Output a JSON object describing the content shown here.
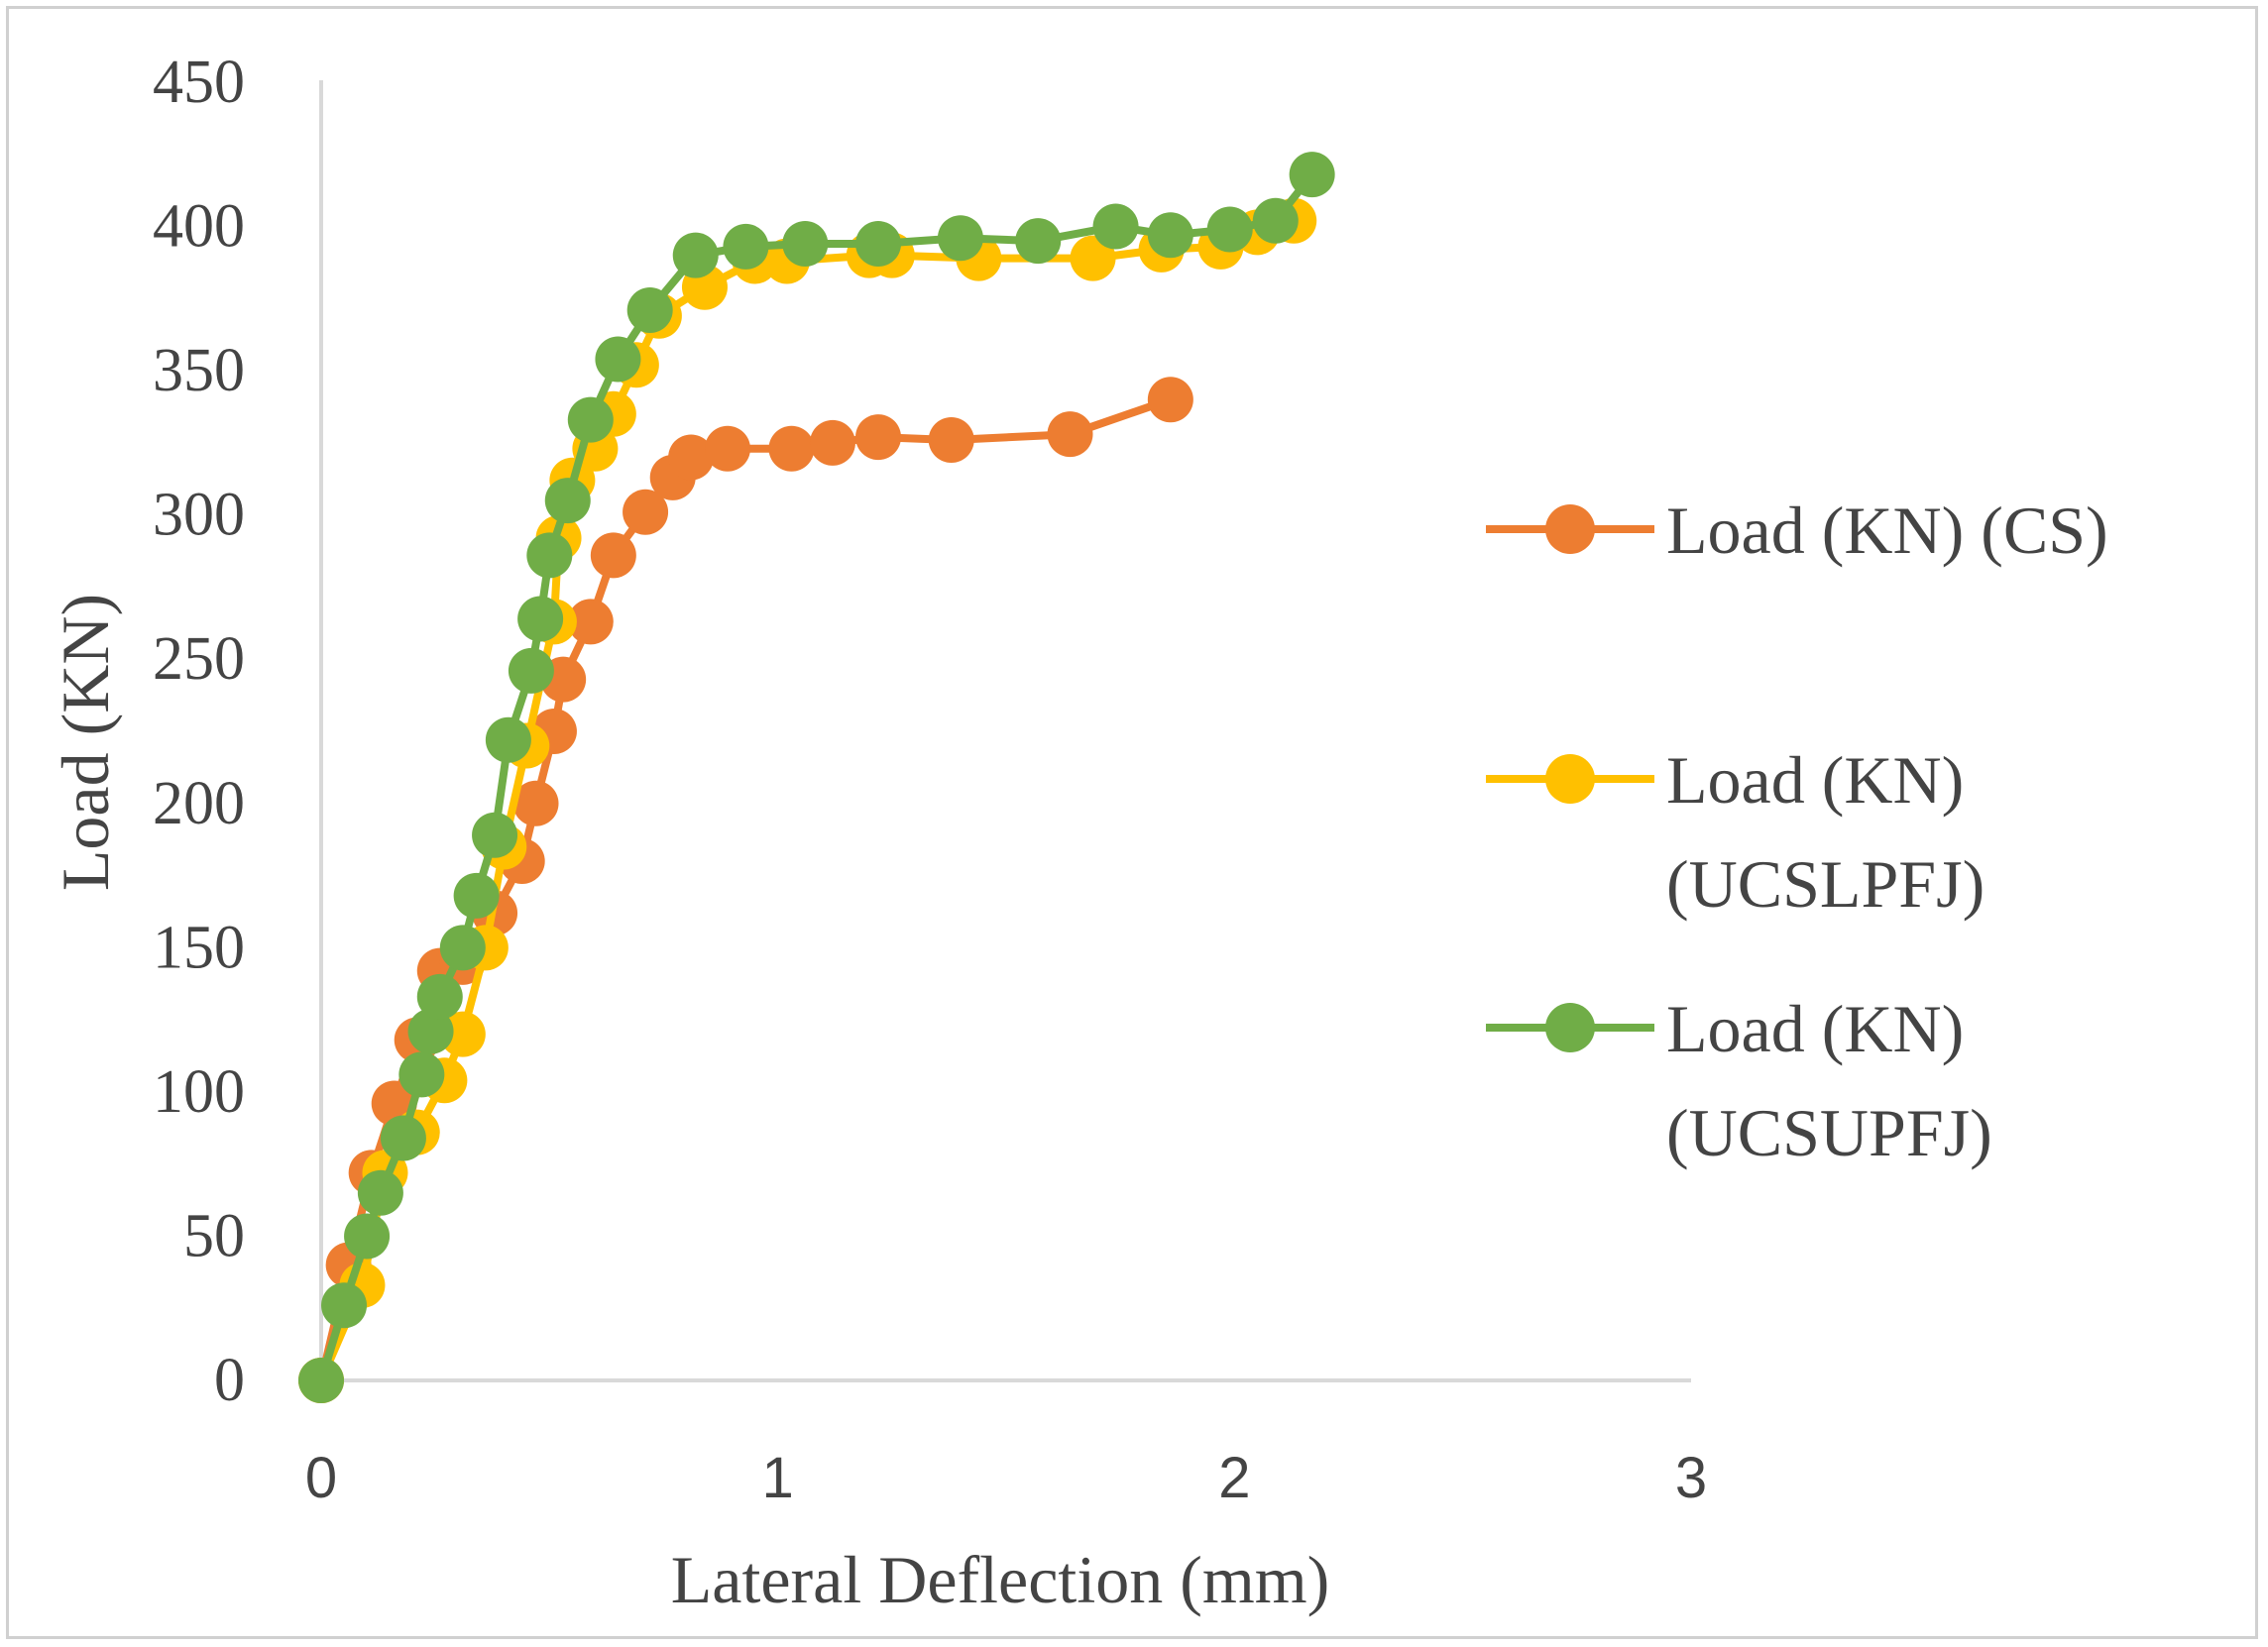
{
  "chart_data": {
    "type": "line",
    "title": "",
    "xlabel": "Lateral Deflection (mm)",
    "ylabel": "Load (KN)",
    "xlim": [
      0,
      3
    ],
    "ylim": [
      0,
      450
    ],
    "xticks": [
      0,
      1,
      2,
      3
    ],
    "yticks": [
      0,
      50,
      100,
      150,
      200,
      250,
      300,
      350,
      400,
      450
    ],
    "grid": false,
    "legend_position": "right",
    "series": [
      {
        "name": "Load (KN) (CS)",
        "legend_lines": [
          "Load (KN) (CS)"
        ],
        "color": "#ED7D31",
        "x": [
          0,
          0.06,
          0.11,
          0.16,
          0.21,
          0.26,
          0.31,
          0.38,
          0.44,
          0.47,
          0.51,
          0.53,
          0.59,
          0.64,
          0.71,
          0.77,
          0.81,
          0.89,
          1.03,
          1.12,
          1.22,
          1.38,
          1.64,
          1.86
        ],
        "y": [
          0,
          40,
          72,
          96,
          118,
          142,
          145,
          162,
          180,
          200,
          225,
          243,
          263,
          286,
          301,
          313,
          320,
          323,
          323,
          325,
          327,
          326,
          328,
          340
        ]
      },
      {
        "name": "Load (KN) (UCSLPFJ)",
        "legend_lines": [
          "Load (KN)",
          "(UCSLPFJ)"
        ],
        "color": "#FFC000",
        "x": [
          0,
          0.09,
          0.14,
          0.21,
          0.27,
          0.31,
          0.36,
          0.4,
          0.45,
          0.51,
          0.52,
          0.55,
          0.6,
          0.64,
          0.69,
          0.74,
          0.84,
          0.95,
          1.02,
          1.2,
          1.25,
          1.44,
          1.69,
          1.84,
          1.97,
          2.05,
          2.13
        ],
        "y": [
          0,
          33,
          72,
          86,
          104,
          120,
          150,
          185,
          220,
          263,
          292,
          312,
          323,
          335,
          352,
          369,
          379,
          388,
          388,
          390,
          390,
          389,
          389,
          392,
          393,
          398,
          402
        ]
      },
      {
        "name": "Load (KN) (UCSUPFJ)",
        "legend_lines": [
          "Load (KN)",
          "(UCSUPFJ)"
        ],
        "color": "#70AD47",
        "x": [
          0,
          0.05,
          0.1,
          0.13,
          0.18,
          0.22,
          0.24,
          0.26,
          0.31,
          0.34,
          0.38,
          0.41,
          0.46,
          0.48,
          0.5,
          0.54,
          0.59,
          0.65,
          0.72,
          0.82,
          0.93,
          1.06,
          1.22,
          1.4,
          1.57,
          1.74,
          1.86,
          1.99,
          2.09,
          2.17
        ],
        "y": [
          0,
          26,
          50,
          65,
          84,
          106,
          121,
          133,
          150,
          168,
          189,
          222,
          246,
          264,
          286,
          305,
          333,
          354,
          371,
          390,
          393,
          394,
          394,
          396,
          395,
          400,
          397,
          399,
          402,
          418
        ]
      }
    ]
  }
}
